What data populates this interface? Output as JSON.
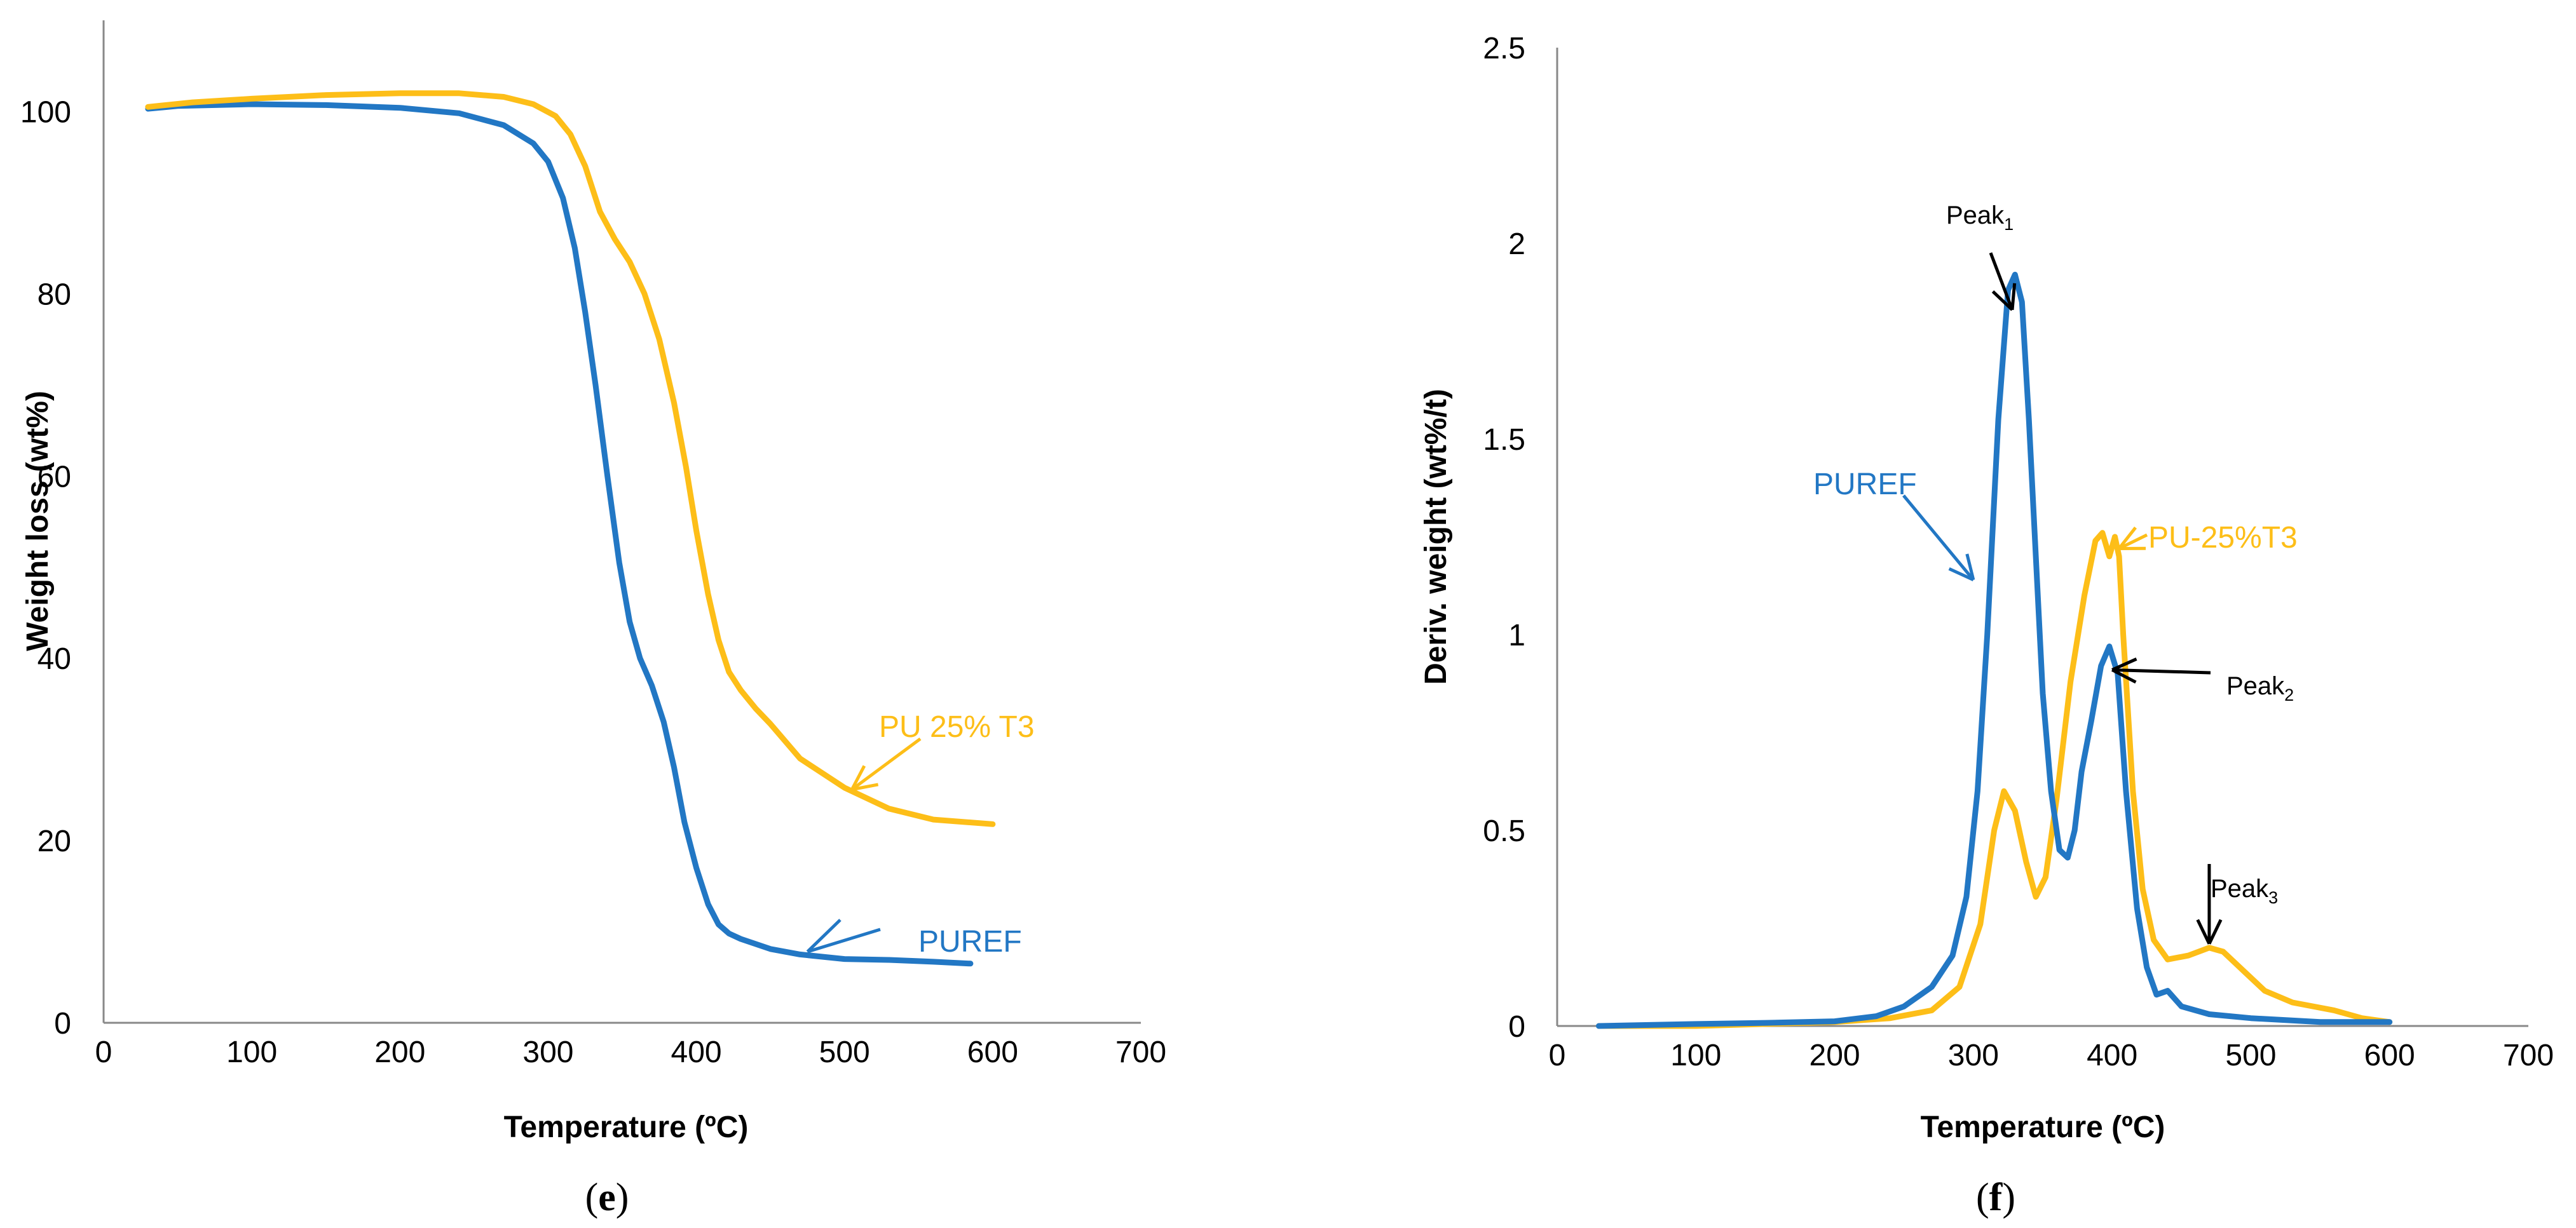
{
  "colors": {
    "puref": "#2277c4",
    "pu_t3": "#fdbe18",
    "axis": "#888888",
    "text": "#000000"
  },
  "chart_data": [
    {
      "type": "line",
      "panel_label": {
        "open": "(",
        "letter": "e",
        "close": ")"
      },
      "title": "",
      "xlabel": "Temperature (ºC)",
      "ylabel": "Weight loss (wt%)",
      "xlim": [
        0,
        700
      ],
      "ylim": [
        0,
        110
      ],
      "xticks": [
        0,
        100,
        200,
        300,
        400,
        500,
        600,
        700
      ],
      "yticks": [
        0,
        20,
        40,
        60,
        80,
        100
      ],
      "grid": false,
      "series": [
        {
          "name": "PUREF",
          "color_key": "puref",
          "label_text": "PUREF",
          "x": [
            30,
            50,
            100,
            150,
            200,
            240,
            270,
            290,
            300,
            310,
            318,
            325,
            332,
            340,
            348,
            355,
            362,
            370,
            378,
            385,
            392,
            400,
            408,
            415,
            422,
            430,
            450,
            470,
            500,
            530,
            560,
            585
          ],
          "y": [
            100.3,
            100.6,
            100.8,
            100.7,
            100.4,
            99.8,
            98.5,
            96.5,
            94.5,
            90.5,
            85,
            78,
            70,
            60,
            50.5,
            44,
            40,
            37,
            33,
            28,
            22,
            17,
            13,
            10.8,
            9.8,
            9.2,
            8.1,
            7.5,
            7.0,
            6.9,
            6.7,
            6.5
          ]
        },
        {
          "name": "PU 25% T3",
          "color_key": "pu_t3",
          "label_text": "PU 25% T3",
          "x": [
            30,
            60,
            100,
            150,
            200,
            240,
            270,
            290,
            305,
            315,
            325,
            335,
            345,
            355,
            365,
            375,
            385,
            393,
            400,
            408,
            415,
            422,
            430,
            440,
            450,
            470,
            500,
            530,
            560,
            600
          ],
          "y": [
            100.5,
            101.0,
            101.4,
            101.8,
            102,
            102,
            101.6,
            100.8,
            99.5,
            97.5,
            94,
            89,
            86,
            83.5,
            80,
            75,
            68,
            61,
            54,
            47,
            42,
            38.5,
            36.5,
            34.5,
            32.8,
            29,
            25.8,
            23.5,
            22.3,
            21.8
          ]
        }
      ],
      "annotations": [
        {
          "series": "PUREF",
          "text": "PUREF",
          "arrow_to": [
            475,
            7.8
          ]
        },
        {
          "series": "PU 25% T3",
          "text": "PU 25% T3",
          "arrow_to": [
            505,
            25.6
          ]
        }
      ]
    },
    {
      "type": "line",
      "panel_label": {
        "open": "(",
        "letter": "f",
        "close": ")"
      },
      "title": "",
      "xlabel": "Temperature (ºC)",
      "ylabel": "Deriv. weight (wt%/t)",
      "xlim": [
        0,
        700
      ],
      "ylim": [
        0,
        2.5
      ],
      "xticks": [
        0,
        100,
        200,
        300,
        400,
        500,
        600,
        700
      ],
      "yticks": [
        0,
        0.5,
        1,
        1.5,
        2,
        2.5
      ],
      "ytick_labels": [
        "0",
        "0.5",
        "1",
        "1.5",
        "2",
        "2.5"
      ],
      "grid": false,
      "series": [
        {
          "name": "PUREF",
          "color_key": "puref",
          "label_text": "PUREF",
          "x": [
            30,
            100,
            150,
            200,
            230,
            250,
            270,
            285,
            295,
            303,
            310,
            318,
            325,
            330,
            335,
            340,
            345,
            350,
            356,
            362,
            368,
            373,
            378,
            385,
            392,
            398,
            404,
            410,
            418,
            425,
            432,
            440,
            450,
            470,
            500,
            550,
            600
          ],
          "y": [
            0,
            0.005,
            0.008,
            0.012,
            0.025,
            0.05,
            0.1,
            0.18,
            0.33,
            0.6,
            1.0,
            1.55,
            1.88,
            1.92,
            1.85,
            1.55,
            1.2,
            0.85,
            0.6,
            0.45,
            0.43,
            0.5,
            0.65,
            0.78,
            0.92,
            0.97,
            0.9,
            0.6,
            0.3,
            0.15,
            0.08,
            0.09,
            0.05,
            0.03,
            0.02,
            0.01,
            0.01
          ]
        },
        {
          "name": "PU-25%T3",
          "color_key": "pu_t3",
          "label_text": "PU-25%T3",
          "x": [
            30,
            100,
            200,
            240,
            270,
            290,
            305,
            315,
            322,
            330,
            338,
            345,
            352,
            360,
            370,
            380,
            388,
            393,
            398,
            402,
            405,
            408,
            415,
            422,
            430,
            440,
            455,
            470,
            480,
            495,
            510,
            530,
            560,
            580,
            600
          ],
          "y": [
            0,
            0.0,
            0.01,
            0.02,
            0.04,
            0.1,
            0.26,
            0.5,
            0.6,
            0.55,
            0.42,
            0.33,
            0.38,
            0.58,
            0.88,
            1.1,
            1.24,
            1.26,
            1.2,
            1.25,
            1.2,
            1.0,
            0.6,
            0.35,
            0.22,
            0.17,
            0.18,
            0.2,
            0.19,
            0.14,
            0.09,
            0.06,
            0.04,
            0.02,
            0.01
          ]
        }
      ],
      "annotations": [
        {
          "text": "Peak",
          "sub": "1",
          "arrow_to": [
            328,
            1.83
          ]
        },
        {
          "text": "Peak",
          "sub": "2",
          "arrow_to": [
            400,
            0.91
          ]
        },
        {
          "text": "Peak",
          "sub": "3",
          "arrow_to": [
            470,
            0.21
          ]
        },
        {
          "series": "PUREF",
          "text": "PUREF",
          "arrow_to": [
            300,
            1.14
          ]
        },
        {
          "series": "PU-25%T3",
          "text": "PU-25%T3",
          "arrow_to": [
            405,
            1.22
          ]
        }
      ]
    }
  ]
}
